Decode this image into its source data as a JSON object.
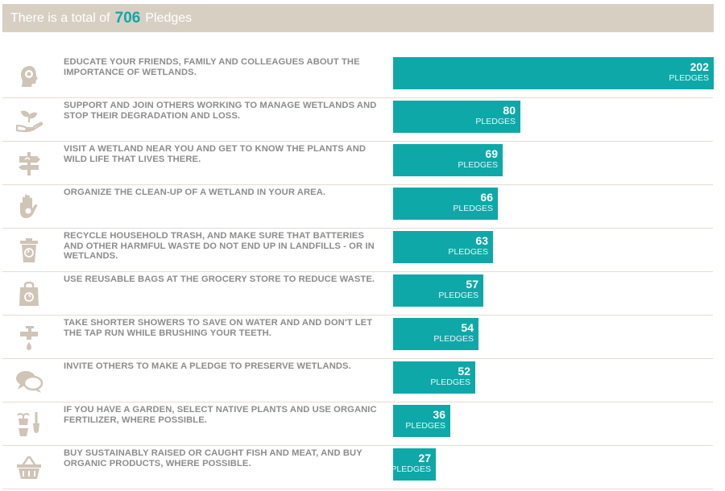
{
  "header": {
    "prefix": "There is a total of",
    "total": "706",
    "suffix": "Pledges"
  },
  "colors": {
    "bar": "#0fa8a8",
    "header_bg": "#d8cfc3",
    "icon": "#cfc4b6",
    "label": "#8c8c8c"
  },
  "unit_label": "PLEDGES",
  "chart_data": {
    "type": "bar",
    "orientation": "horizontal",
    "title": "There is a total of 706 Pledges",
    "xlim": [
      0,
      202
    ],
    "categories": [
      "EDUCATE YOUR FRIENDS, FAMILY AND COLLEAGUES ABOUT THE IMPORTANCE OF WETLANDS.",
      "SUPPORT AND JOIN OTHERS WORKING TO MANAGE WETLANDS AND STOP THEIR DEGRADATION AND LOSS.",
      "VISIT A WETLAND NEAR YOU AND GET TO KNOW THE PLANTS AND WILD LIFE THAT LIVES THERE.",
      "ORGANIZE THE CLEAN-UP OF A WETLAND IN YOUR AREA.",
      "RECYCLE HOUSEHOLD TRASH, AND MAKE SURE THAT BATTERIES AND OTHER HARMFUL WASTE DO NOT END UP IN LANDFILLS - OR IN WETLANDS.",
      "USE REUSABLE BAGS AT THE GROCERY STORE TO REDUCE WASTE.",
      "TAKE SHORTER SHOWERS TO SAVE ON WATER AND AND DON'T LET THE TAP RUN WHILE BRUSHING YOUR TEETH.",
      "INVITE OTHERS TO MAKE A PLEDGE TO PRESERVE WETLANDS.",
      "IF YOU HAVE A GARDEN, SELECT NATIVE PLANTS AND USE ORGANIC FERTILIZER, WHERE POSSIBLE.",
      "BUY SUSTAINABLY RAISED OR CAUGHT FISH AND MEAT, AND BUY ORGANIC PRODUCTS, WHERE POSSIBLE."
    ],
    "values": [
      202,
      80,
      69,
      66,
      63,
      57,
      54,
      52,
      36,
      27
    ],
    "icons": [
      "head-profile-icon",
      "hand-seedling-icon",
      "signpost-icon",
      "glove-icon",
      "recycle-bin-icon",
      "recycle-bag-icon",
      "water-tap-icon",
      "speech-bubbles-icon",
      "garden-tools-icon",
      "shopping-basket-icon"
    ]
  }
}
